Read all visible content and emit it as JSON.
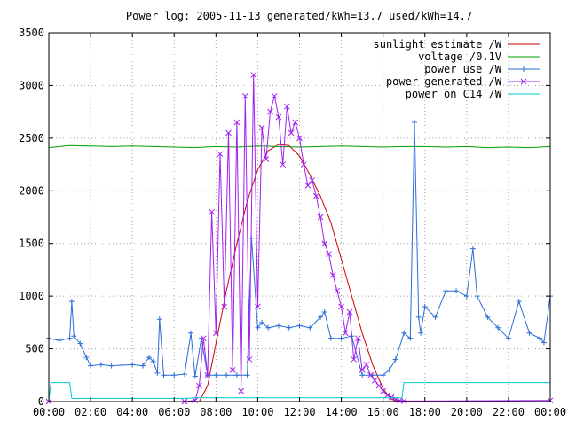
{
  "chart_data": {
    "type": "line",
    "title": "Power log: 2005-11-13 generated/kWh=13.7 used/kWh=14.7",
    "xlabel": "",
    "ylabel": "",
    "xlim": [
      0,
      24
    ],
    "ylim": [
      0,
      3500
    ],
    "grid": true,
    "legend_position": "top-right",
    "x_ticks": [
      {
        "value": 0,
        "label": "00:00"
      },
      {
        "value": 2,
        "label": "02:00"
      },
      {
        "value": 4,
        "label": "04:00"
      },
      {
        "value": 6,
        "label": "06:00"
      },
      {
        "value": 8,
        "label": "08:00"
      },
      {
        "value": 10,
        "label": "10:00"
      },
      {
        "value": 12,
        "label": "12:00"
      },
      {
        "value": 14,
        "label": "14:00"
      },
      {
        "value": 16,
        "label": "16:00"
      },
      {
        "value": 18,
        "label": "18:00"
      },
      {
        "value": 20,
        "label": "20:00"
      },
      {
        "value": 22,
        "label": "22:00"
      },
      {
        "value": 24,
        "label": "00:00"
      }
    ],
    "y_ticks": [
      0,
      500,
      1000,
      1500,
      2000,
      2500,
      3000,
      3500
    ],
    "series": [
      {
        "name": "sunlight estimate /W",
        "color": "#cc0000",
        "marker": "none",
        "x": [
          0,
          7.2,
          7.6,
          8.0,
          8.5,
          9.0,
          9.5,
          10.0,
          10.5,
          11.0,
          11.5,
          12.0,
          12.5,
          13.0,
          13.5,
          14.0,
          14.5,
          15.0,
          15.5,
          16.0,
          16.4,
          16.8,
          24
        ],
        "y": [
          0,
          0,
          150,
          550,
          1050,
          1500,
          1900,
          2200,
          2380,
          2440,
          2430,
          2330,
          2150,
          1950,
          1700,
          1350,
          1000,
          650,
          350,
          120,
          20,
          0,
          0
        ]
      },
      {
        "name": "voltage /0.1V",
        "color": "#00a000",
        "marker": "none",
        "x": [
          0,
          1,
          2,
          3,
          4,
          5,
          6,
          7,
          8,
          9,
          10,
          11,
          12,
          13,
          14,
          15,
          16,
          17,
          18,
          19,
          20,
          21,
          22,
          23,
          24
        ],
        "y": [
          2410,
          2430,
          2425,
          2420,
          2425,
          2420,
          2415,
          2410,
          2420,
          2415,
          2425,
          2420,
          2415,
          2420,
          2425,
          2420,
          2415,
          2420,
          2420,
          2415,
          2420,
          2410,
          2415,
          2410,
          2420
        ]
      },
      {
        "name": "power use /W",
        "color": "#2a6dd8",
        "marker": "plus",
        "x": [
          0,
          0.5,
          1.0,
          1.1,
          1.2,
          1.5,
          1.8,
          2.0,
          2.5,
          3.0,
          3.5,
          4.0,
          4.5,
          4.8,
          5.0,
          5.2,
          5.3,
          5.5,
          6.0,
          6.5,
          6.8,
          7.0,
          7.3,
          7.6,
          8.0,
          8.5,
          9.0,
          9.5,
          9.7,
          10.0,
          10.2,
          10.5,
          11.0,
          11.5,
          12.0,
          12.5,
          13.0,
          13.2,
          13.5,
          14.0,
          14.5,
          15.0,
          15.5,
          16.0,
          16.3,
          16.6,
          17.0,
          17.3,
          17.5,
          17.7,
          17.8,
          18.0,
          18.5,
          19.0,
          19.5,
          20.0,
          20.3,
          20.5,
          21.0,
          21.5,
          22.0,
          22.5,
          23.0,
          23.5,
          23.7,
          24.0
        ],
        "y": [
          600,
          580,
          600,
          950,
          620,
          550,
          420,
          340,
          350,
          340,
          345,
          350,
          340,
          420,
          380,
          270,
          780,
          250,
          250,
          260,
          650,
          240,
          600,
          250,
          250,
          250,
          250,
          250,
          1550,
          700,
          750,
          700,
          720,
          700,
          720,
          700,
          800,
          850,
          600,
          600,
          620,
          250,
          250,
          250,
          300,
          400,
          650,
          600,
          2650,
          800,
          650,
          900,
          800,
          1050,
          1050,
          1000,
          1450,
          1000,
          800,
          700,
          600,
          950,
          650,
          600,
          560,
          1000
        ]
      },
      {
        "name": "power generated /W",
        "color": "#a020f0",
        "marker": "x",
        "x": [
          0,
          6.5,
          7.0,
          7.2,
          7.4,
          7.6,
          7.8,
          8.0,
          8.2,
          8.4,
          8.6,
          8.8,
          9.0,
          9.2,
          9.4,
          9.6,
          9.8,
          10.0,
          10.2,
          10.4,
          10.6,
          10.8,
          11.0,
          11.2,
          11.4,
          11.6,
          11.8,
          12.0,
          12.2,
          12.4,
          12.6,
          12.8,
          13.0,
          13.2,
          13.4,
          13.6,
          13.8,
          14.0,
          14.2,
          14.4,
          14.6,
          14.8,
          15.0,
          15.2,
          15.4,
          15.6,
          15.8,
          16.0,
          16.2,
          16.4,
          16.6,
          16.8,
          17.0,
          24
        ],
        "y": [
          0,
          0,
          10,
          150,
          600,
          250,
          1800,
          650,
          2350,
          900,
          2550,
          300,
          2650,
          100,
          2900,
          400,
          3100,
          900,
          2600,
          2300,
          2750,
          2900,
          2700,
          2250,
          2800,
          2550,
          2650,
          2500,
          2250,
          2050,
          2100,
          1950,
          1750,
          1500,
          1400,
          1200,
          1050,
          900,
          650,
          850,
          400,
          600,
          300,
          350,
          250,
          200,
          150,
          100,
          60,
          40,
          20,
          10,
          5,
          10
        ]
      },
      {
        "name": "power on C14 /W",
        "color": "#00c8c8",
        "marker": "none",
        "x": [
          0,
          0.1,
          1.0,
          1.1,
          6.5,
          7.0,
          16.9,
          17.0,
          24.0
        ],
        "y": [
          10,
          180,
          180,
          30,
          30,
          35,
          35,
          180,
          180
        ]
      }
    ]
  }
}
